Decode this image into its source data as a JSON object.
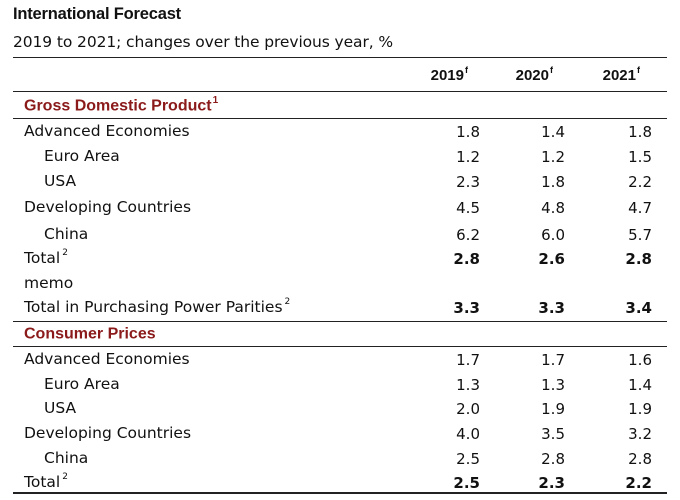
{
  "title": "International Forecast",
  "subtitle": "2019 to 2021; changes over the previous year, %",
  "columns": [
    {
      "year": "2019",
      "suffix": "f"
    },
    {
      "year": "2020",
      "suffix": "f"
    },
    {
      "year": "2021",
      "suffix": "f"
    }
  ],
  "sections": [
    {
      "title": "Gross Domestic Product",
      "note": "1",
      "rows": [
        {
          "label": "Advanced Economies",
          "note": "",
          "level": 0,
          "bold": false,
          "values": [
            "1.8",
            "1.4",
            "1.8"
          ]
        },
        {
          "label": "Euro Area",
          "note": "",
          "level": 1,
          "bold": false,
          "values": [
            "1.2",
            "1.2",
            "1.5"
          ]
        },
        {
          "label": "USA",
          "note": "",
          "level": 1,
          "bold": false,
          "values": [
            "2.3",
            "1.8",
            "2.2"
          ]
        },
        {
          "label": "Developing Countries",
          "note": "",
          "level": 0,
          "bold": false,
          "values": [
            "4.5",
            "4.8",
            "4.7"
          ]
        },
        {
          "label": "China",
          "note": "",
          "level": 1,
          "bold": false,
          "values": [
            "6.2",
            "6.0",
            "5.7"
          ]
        },
        {
          "label": "Total",
          "note": "2",
          "level": 0,
          "bold": true,
          "values": [
            "2.8",
            "2.6",
            "2.8"
          ]
        },
        {
          "label": "memo",
          "note": "",
          "level": 0,
          "bold": false,
          "values": [
            "",
            "",
            ""
          ]
        },
        {
          "label": "Total in Purchasing Power Parities",
          "note": "2",
          "level": 0,
          "bold": true,
          "values": [
            "3.3",
            "3.3",
            "3.4"
          ]
        }
      ]
    },
    {
      "title": "Consumer Prices",
      "note": "",
      "rows": [
        {
          "label": "Advanced Economies",
          "note": "",
          "level": 0,
          "bold": false,
          "values": [
            "1.7",
            "1.7",
            "1.6"
          ]
        },
        {
          "label": "Euro Area",
          "note": "",
          "level": 1,
          "bold": false,
          "values": [
            "1.3",
            "1.3",
            "1.4"
          ]
        },
        {
          "label": "USA",
          "note": "",
          "level": 1,
          "bold": false,
          "values": [
            "2.0",
            "1.9",
            "1.9"
          ]
        },
        {
          "label": "Developing Countries",
          "note": "",
          "level": 0,
          "bold": false,
          "values": [
            "4.0",
            "3.5",
            "3.2"
          ]
        },
        {
          "label": "China",
          "note": "",
          "level": 1,
          "bold": false,
          "values": [
            "2.5",
            "2.8",
            "2.8"
          ]
        },
        {
          "label": "Total",
          "note": "2",
          "level": 0,
          "bold": true,
          "values": [
            "2.5",
            "2.3",
            "2.2"
          ]
        }
      ]
    }
  ],
  "colors": {
    "section_title": "#8b1a1a",
    "rule": "#222222"
  }
}
